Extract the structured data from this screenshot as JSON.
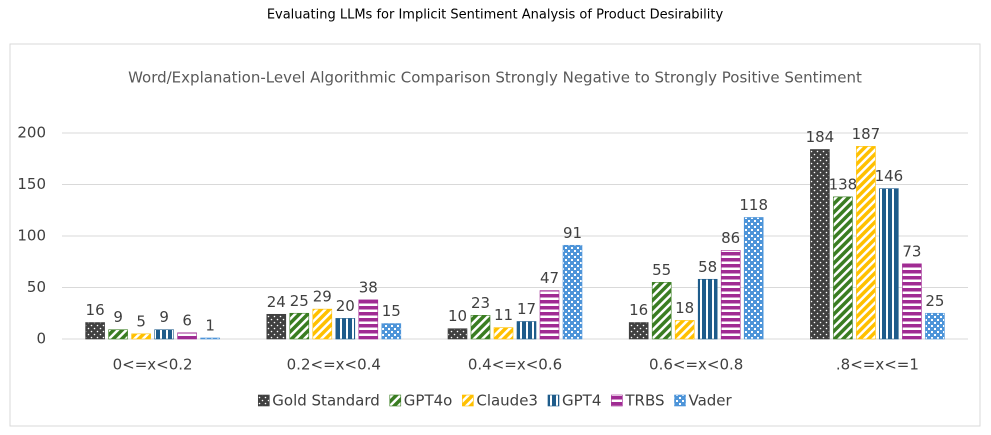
{
  "chart_data": {
    "type": "bar",
    "suptitle": "Evaluating LLMs for Implicit Sentiment Analysis of Product Desirability",
    "title": "Word/Explanation-Level Algorithmic Comparison Strongly Negative to Strongly Positive Sentiment",
    "categories": [
      "0<=x<0.2",
      "0.2<=x<0.4",
      "0.4<=x<0.6",
      "0.6<=x<0.8",
      ".8<=x<=1"
    ],
    "series": [
      {
        "name": "Gold Standard",
        "color": "#404040",
        "pattern": "dots",
        "values": [
          16,
          24,
          10,
          16,
          184
        ]
      },
      {
        "name": "GPT4o",
        "color": "#3a7d22",
        "pattern": "diagonal",
        "values": [
          9,
          25,
          23,
          55,
          138
        ]
      },
      {
        "name": "Claude3",
        "color": "#ffc000",
        "pattern": "diagonal",
        "values": [
          5,
          29,
          11,
          18,
          187
        ]
      },
      {
        "name": "GPT4",
        "color": "#1f5c8b",
        "pattern": "vertical",
        "values": [
          9,
          20,
          17,
          58,
          146
        ]
      },
      {
        "name": "TRBS",
        "color": "#a02b93",
        "pattern": "horizontal",
        "values": [
          6,
          38,
          47,
          86,
          73
        ]
      },
      {
        "name": "Vader",
        "color": "#4e95d9",
        "pattern": "checker",
        "values": [
          1,
          15,
          91,
          118,
          25
        ]
      }
    ],
    "ylim": [
      0,
      200
    ],
    "yticks": [
      0,
      50,
      100,
      150,
      200
    ],
    "grid": true,
    "legend": "bottom"
  }
}
